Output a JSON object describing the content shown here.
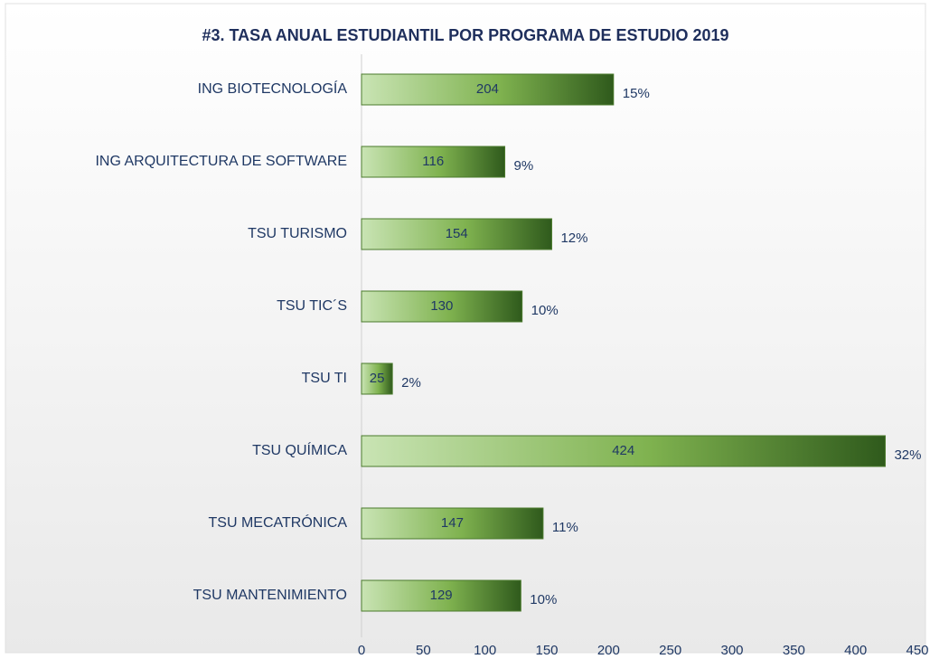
{
  "chart_data": {
    "type": "barh",
    "title": "#3. TASA ANUAL ESTUDIANTIL POR PROGRAMA DE ESTUDIO 2019",
    "categories": [
      "ING BIOTECNOLOGÍA",
      "ING ARQUITECTURA DE SOFTWARE",
      "TSU TURISMO",
      "TSU TIC´S",
      "TSU TI",
      "TSU QUÍMICA",
      "TSU MECATRÓNICA",
      "TSU MANTENIMIENTO"
    ],
    "values": [
      204,
      116,
      154,
      130,
      25,
      424,
      147,
      129
    ],
    "percent_labels": [
      "15%",
      "9%",
      "12%",
      "10%",
      "2%",
      "32%",
      "11%",
      "10%"
    ],
    "color": "#4a7a2c",
    "xlim": [
      0,
      450
    ],
    "xticks": [
      0,
      50,
      100,
      150,
      200,
      250,
      300,
      350,
      400,
      450
    ],
    "grid": false
  }
}
